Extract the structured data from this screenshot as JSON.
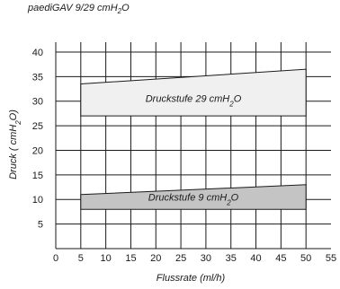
{
  "chart_data": {
    "type": "area",
    "title": "paediGAV 9/29 cmH2O",
    "title_parts": {
      "main": "paediGAV 9/29 cmH",
      "sub": "2",
      "tail": "O"
    },
    "xlabel": "Flussrate (ml/h)",
    "ylabel": "Druck ( cmH2O)",
    "ylabel_parts": {
      "main": "Druck ( cmH",
      "sub": "2",
      "tail": "O)"
    },
    "xlim": [
      0,
      55
    ],
    "ylim": [
      0,
      42
    ],
    "xticks": [
      0,
      5,
      10,
      15,
      20,
      25,
      30,
      35,
      40,
      45,
      50,
      55
    ],
    "yticks": [
      5,
      10,
      15,
      20,
      25,
      30,
      35,
      40
    ],
    "grid": true,
    "series": [
      {
        "name": "Druckstufe 29 cmH2O",
        "label_parts": {
          "main": "Druckstufe 29 cmH",
          "sub": "2",
          "tail": "O"
        },
        "x": [
          5,
          50
        ],
        "lower": [
          27,
          27
        ],
        "upper": [
          33.5,
          36.5
        ],
        "fill": "#f0f0f0"
      },
      {
        "name": "Druckstufe 9 cmH2O",
        "label_parts": {
          "main": "Druckstufe 9 cmH",
          "sub": "2",
          "tail": "O"
        },
        "x": [
          5,
          50
        ],
        "lower": [
          8,
          8
        ],
        "upper": [
          11,
          13
        ],
        "fill": "#c4c4c4"
      }
    ],
    "colors": {
      "grid": "#1a1a1a",
      "outline": "#1a1a1a"
    }
  }
}
